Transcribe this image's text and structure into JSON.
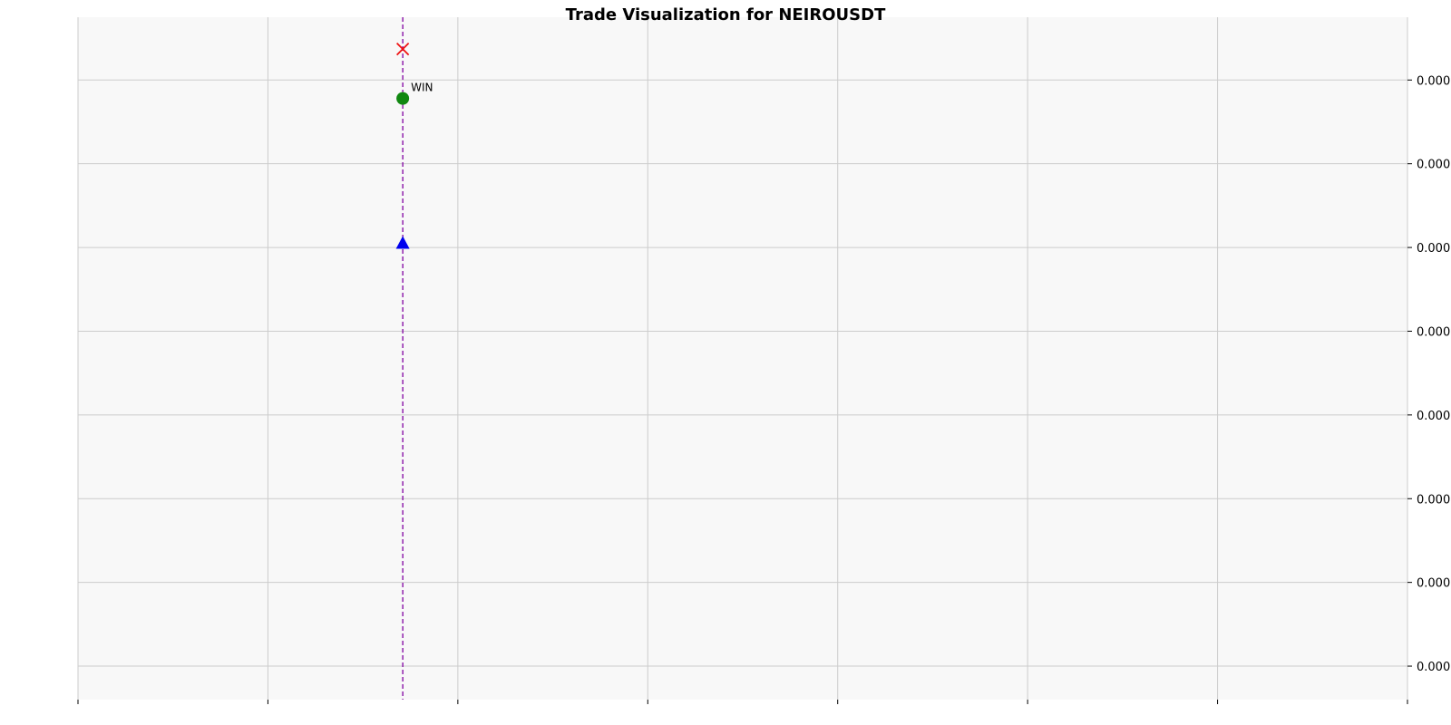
{
  "chart_data": {
    "type": "scatter",
    "title": "Trade Visualization for NEIROUSDT",
    "xlabel": "",
    "ylabel": "",
    "grid": true,
    "y_axis_side": "right",
    "xlim": [
      0,
      7
    ],
    "ylim": [
      -0.4,
      7.75
    ],
    "x_ticks": [
      0,
      1,
      2,
      3,
      4,
      5,
      6,
      7
    ],
    "x_tick_labels": [
      "",
      "",
      "",
      "",
      "",
      "",
      "",
      ""
    ],
    "y_ticks": [
      0,
      1,
      2,
      3,
      4,
      5,
      6,
      7
    ],
    "y_tick_labels": [
      "0.000",
      "0.000",
      "0.000",
      "0.000",
      "0.000",
      "0.000",
      "0.000",
      "0.000"
    ],
    "vertical_line": {
      "x": 1.71,
      "color": "#8000a0",
      "style": "dashed"
    },
    "series": [
      {
        "marker": "triangle",
        "color": "#0000ee",
        "points": [
          {
            "x": 1.71,
            "y": 5.05
          }
        ]
      },
      {
        "marker": "circle",
        "color": "#118811",
        "points": [
          {
            "x": 1.71,
            "y": 6.78
          }
        ]
      },
      {
        "marker": "x",
        "color": "#ee1111",
        "points": [
          {
            "x": 1.71,
            "y": 7.37
          }
        ]
      }
    ],
    "annotations": [
      {
        "text": "WIN",
        "x": 1.71,
        "y": 6.78
      }
    ],
    "colors": {
      "plot_bg": "#f8f8f8",
      "grid": "#cccccc"
    }
  }
}
